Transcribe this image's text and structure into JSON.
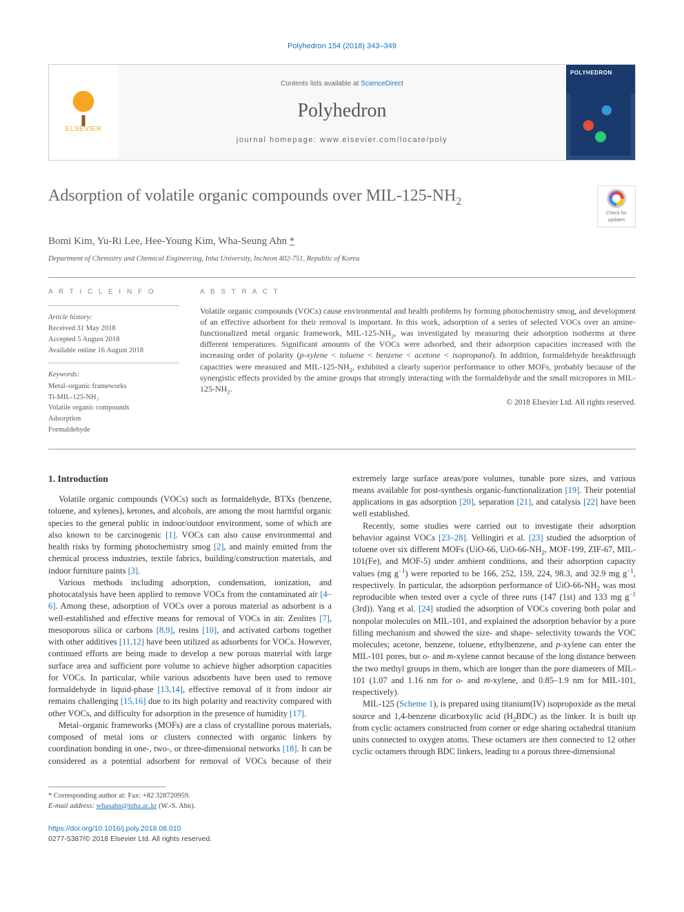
{
  "journal_citation": "Polyhedron 154 (2018) 343–349",
  "header": {
    "publisher_logo_text": "ELSEVIER",
    "contents_prefix": "Contents lists available at ",
    "contents_link": "ScienceDirect",
    "journal_name": "Polyhedron",
    "homepage_label": "journal homepage: www.elsevier.com/locate/poly",
    "cover_title": "POLYHEDRON"
  },
  "crossmark_label": "Check for updates",
  "title_html": "Adsorption of volatile organic compounds over MIL-125-NH<sub>2</sub>",
  "authors": "Bomi Kim, Yu-Ri Lee, Hee-Young Kim, Wha-Seung Ahn",
  "corr_marker": "*",
  "affiliation": "Department of Chemistry and Chemical Engineering, Inha University, Incheon 402-751, Republic of Korea",
  "article_info_heading": "A R T I C L E   I N F O",
  "abstract_heading": "A B S T R A C T",
  "history": {
    "heading": "Article history:",
    "received": "Received 31 May 2018",
    "accepted": "Accepted 5 August 2018",
    "online": "Available online 16 August 2018"
  },
  "keywords_heading": "Keywords:",
  "keywords": [
    "Metal–organic frameworks",
    "Ti-MIL-125-NH₂",
    "Volatile organic compounds",
    "Adsorption",
    "Formaldehyde"
  ],
  "abstract_html": "Volatile organic compounds (VOCs) cause environmental and health problems by forming photochemistry smog, and development of an effective adsorbent for their removal is important. In this work, adsorption of a series of selected VOCs over an amine-functionalized metal organic framework, MIL-125-NH<sub>2</sub>, was investigated by measuring their adsorption isotherms at three different temperatures. Significant amounts of the VOCs were adsorbed, and their adsorption capacities increased with the increasing order of polarity (<span class=\"order\"><i>p</i>-xylene &lt; toluene &lt; benzene &lt; acetone &lt; isopropanol</span>). In addition, formaldehyde breakthrough capacities were measured and MIL-125-NH<sub>2</sub>, exhibited a clearly superior performance to other MOFs, probably because of the synergistic effects provided by the amine groups that strongly interacting with the formaldehyde and the small micropores in MIL-125-NH<sub>2</sub>.",
  "copyright": "© 2018 Elsevier Ltd. All rights reserved.",
  "section1_heading": "1. Introduction",
  "body": {
    "p1": "Volatile organic compounds (VOCs) such as formaldehyde, BTXs (benzene, toluene, and xylenes), ketones, and alcohols, are among the most harmful organic species to the general public in indoor/outdoor environment, some of which are also known to be carcinogenic <a class=\"ref\" href=\"#\">[1]</a>. VOCs can also cause environmental and health risks by forming photochemistry smog <a class=\"ref\" href=\"#\">[2]</a>, and mainly emitted from the chemical process industries, textile fabrics, building/construction materials, and indoor furniture paints <a class=\"ref\" href=\"#\">[3]</a>.",
    "p2": "Various methods including adsorption, condensation, ionization, and photocatalysis have been applied to remove VOCs from the contaminated air <a class=\"ref\" href=\"#\">[4–6]</a>. Among these, adsorption of VOCs over a porous material as adsorbent is a well-established and effective means for removal of VOCs in air. Zeolites <a class=\"ref\" href=\"#\">[7]</a>, mesoporous silica or carbons <a class=\"ref\" href=\"#\">[8,9]</a>, resins <a class=\"ref\" href=\"#\">[10]</a>, and activated carbons together with other additives <a class=\"ref\" href=\"#\">[11,12]</a> have been utilized as adsorbents for VOCs. However, continued efforts are being made to develop a new porous material with large surface area and sufficient pore volume to achieve higher adsorption capacities for VOCs. In particular, while various adsorbents have been used to remove formaldehyde in liquid-phase <a class=\"ref\" href=\"#\">[13,14]</a>, effective removal of it from indoor air remains challenging <a class=\"ref\" href=\"#\">[15,16]</a> due to its high polarity and reactivity compared with other VOCs, and difficulty for adsorption in the presence of humidity <a class=\"ref\" href=\"#\">[17]</a>.",
    "p3": "Metal–organic frameworks (MOFs) are a class of crystalline porous materials, composed of metal ions or clusters connected with organic linkers by coordination bonding in one-, two-, or three-dimensional networks <a class=\"ref\" href=\"#\">[18]</a>. It can be considered as a potential adsorbent for removal of VOCs because of their extremely large surface areas/pore volumes, tunable pore sizes, and various means available for post-synthesis organic-functionalization <a class=\"ref\" href=\"#\">[19]</a>. Their potential applications in gas adsorption <a class=\"ref\" href=\"#\">[20]</a>, separation <a class=\"ref\" href=\"#\">[21]</a>, and catalysis <a class=\"ref\" href=\"#\">[22]</a> have been well established.",
    "p4": "Recently, some studies were carried out to investigate their adsorption behavior against VOCs <a class=\"ref\" href=\"#\">[23–28]</a>. Vellingiri et al. <a class=\"ref\" href=\"#\">[23]</a> studied the adsorption of toluene over six different MOFs (UiO-66, UiO-66-NH<sub>2</sub>, MOF-199, ZIF-67, MIL-101(Fe), and MOF-5) under ambient conditions, and their adsorption capacity values (mg g<sup>−1</sup>) were reported to be 166, 252, 159, 224, 98.3, and 32.9 mg g<sup>−1</sup>, respectively. In particular, the adsorption performance of UiO-66-NH<sub>2</sub> was most reproducible when tested over a cycle of three runs (147 (1st) and 133 mg g<sup>−1</sup> (3rd)). Yang et al. <a class=\"ref\" href=\"#\">[24]</a> studied the adsorption of VOCs covering both polar and nonpolar molecules on MIL-101, and explained the adsorption behavior by a pore filling mechanism and showed the size- and shape- selectivity towards the VOC molecules; acetone, benzene, toluene, ethylbenzene, and <i>p</i>-xylene can enter the MIL-101 pores, but <i>o</i>- and <i>m</i>-xylene cannot because of the long distance between the two methyl groups in them, which are longer than the pore diameters of MIL-101 (1.07 and 1.16 nm for <i>o</i>- and <i>m</i>-xylene, and 0.85–1.9 nm for MIL-101, respectively).",
    "p5": "MIL-125 (<a class=\"ref\" href=\"#\">Scheme 1</a>), is prepared using titanium(IV) isopropoxide as the metal source and 1,4-benzene dicarboxylic acid (H<sub>2</sub>BDC) as the linker. It is built up from cyclic octamers constructed from corner or edge sharing octahedral titanium units connected to oxygen atoms. These octamers are then connected to 12 other cyclic octamers through BDC linkers, leading to a porous three-dimensional"
  },
  "footnote": {
    "corr_line": "* Corresponding author at: Fax: +82 328720959.",
    "email_label": "E-mail address:",
    "email": "whasahn@inha.ac.kr",
    "email_suffix": "(W.-S. Ahn)."
  },
  "doi": {
    "url": "https://doi.org/10.1016/j.poly.2018.08.010",
    "issn_line": "0277-5387/© 2018 Elsevier Ltd. All rights reserved."
  },
  "colors": {
    "link": "#1b6fb5",
    "pub_orange": "#f5a623",
    "heading_grey": "#666666",
    "rule_grey": "#999999"
  }
}
